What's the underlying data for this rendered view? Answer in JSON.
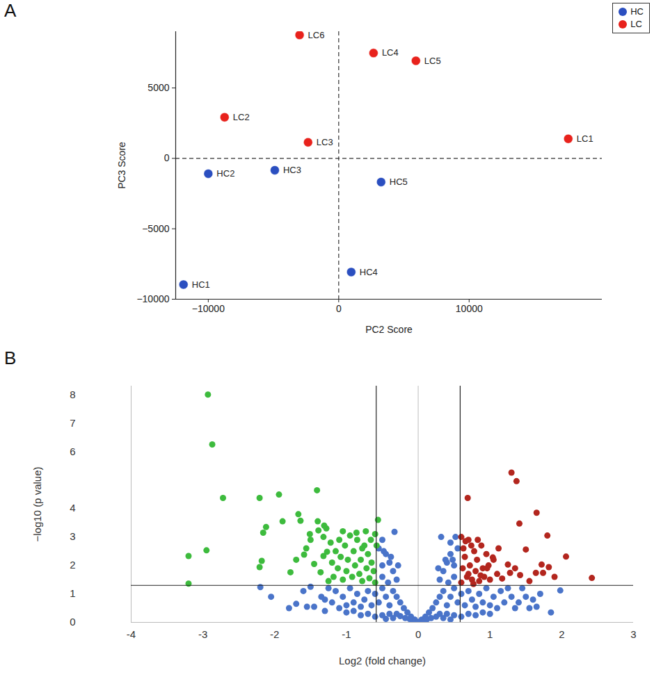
{
  "chart_data": [
    {
      "type": "scatter",
      "panel": "A",
      "xlabel": "PC2 Score",
      "ylabel": "PC3 Score",
      "xlim": [
        -12500,
        20200
      ],
      "ylim": [
        -10000,
        9000
      ],
      "xticks": [
        {
          "value": -10000,
          "label": "−10000"
        },
        0,
        10000
      ],
      "yticks": [
        {
          "value": -10000,
          "label": "−10000"
        },
        {
          "value": -5000,
          "label": "−5000"
        },
        0,
        5000
      ],
      "crosshair": {
        "x": 0,
        "y": 0
      },
      "legend": "top-right",
      "marker": "circle",
      "series": [
        {
          "name": "HC",
          "color": "#2b4fc0",
          "labels": [
            "HC1",
            "HC2",
            "HC3",
            "HC4",
            "HC5"
          ],
          "x": [
            -11900,
            -10000,
            -4900,
            960,
            3250
          ],
          "values": [
            -8960,
            -1090,
            -840,
            -8070,
            -1680
          ]
        },
        {
          "name": "LC",
          "color": "#e8221c",
          "labels": [
            "LC1",
            "LC2",
            "LC3",
            "LC4",
            "LC5",
            "LC6"
          ],
          "x": [
            17600,
            -8750,
            -2350,
            2670,
            5920,
            -3000
          ],
          "values": [
            1390,
            2920,
            1140,
            7480,
            6930,
            8760
          ]
        }
      ]
    },
    {
      "type": "scatter",
      "panel": "B",
      "xlabel": "Log2 (fold change)",
      "ylabel": "−log10 (p value)",
      "xlim": [
        -4,
        3
      ],
      "ylim": [
        0,
        8.3
      ],
      "xticks": [
        -4,
        -3,
        -2,
        -1,
        0,
        1,
        2,
        3
      ],
      "yticks": [
        0,
        1,
        2,
        3,
        4,
        6,
        7,
        8
      ],
      "thresholds": {
        "fold_change": [
          -0.585,
          0.585
        ],
        "p_value": 1.3,
        "center_line": 0
      },
      "marker": "circle",
      "series": [
        {
          "color": "#4a74c9",
          "x": [
            0,
            0.05,
            -0.05,
            0.1,
            -0.1,
            0.15,
            -0.15,
            0.2,
            -0.2,
            0.08,
            -0.08,
            0.12,
            -0.12,
            0.18,
            -0.18,
            0.25,
            -0.25,
            0.3,
            -0.3,
            0.35,
            -0.35,
            0.4,
            -0.4,
            0.45,
            -0.45,
            0.5,
            -0.5,
            0.6,
            -0.6,
            0.7,
            -0.7,
            0.8,
            -0.8,
            0.9,
            -0.9,
            1.0,
            -1.0,
            0.25,
            -0.25,
            0.3,
            -0.3,
            0.35,
            -0.35,
            0.4,
            -0.4,
            0.45,
            -0.45,
            0.5,
            -0.5,
            0.55,
            -0.55,
            0.6,
            -0.6,
            0.65,
            -0.65,
            0.7,
            -0.7,
            0.75,
            -0.75,
            0.8,
            -0.8,
            0.85,
            -0.85,
            0.9,
            -0.9,
            0.95,
            -0.95,
            1.0,
            -1.0,
            1.05,
            -1.05,
            1.1,
            -1.1,
            1.15,
            -1.15,
            1.2,
            -1.2,
            1.3,
            -1.3,
            1.35,
            -1.3,
            1.25,
            -1.25,
            0.3,
            -0.3,
            0.35,
            -0.35,
            0.4,
            -0.4,
            0.45,
            -0.45,
            0.5,
            -0.5,
            0.5,
            -0.5,
            0.55,
            -0.55,
            0.45,
            -0.5,
            0.42,
            -0.42,
            0.38,
            -0.38,
            0.52,
            -0.33,
            0.32,
            0.28,
            -0.28,
            0.48,
            -0.48,
            -2.2,
            -2.05,
            -1.8,
            -1.7,
            -1.55,
            -1.45,
            -1.35,
            -1.6,
            1.98,
            1.85,
            1.65,
            1.55,
            1.4,
            1.5,
            1.7,
            1.45,
            -1.5,
            1.6
          ],
          "values": [
            0.02,
            0.1,
            0.1,
            0.2,
            0.2,
            0.35,
            0.35,
            0.5,
            0.5,
            0.05,
            0.05,
            0.1,
            0.12,
            0.15,
            0.15,
            0.2,
            0.22,
            0.3,
            0.3,
            0.15,
            0.15,
            0.3,
            0.3,
            0.1,
            0.12,
            0.25,
            0.25,
            0.2,
            0.2,
            0.3,
            0.3,
            0.25,
            0.25,
            0.35,
            0.4,
            0.3,
            0.35,
            0.7,
            0.7,
            0.9,
            0.9,
            1.1,
            1.1,
            0.6,
            0.6,
            0.9,
            0.9,
            1.2,
            1.2,
            0.7,
            0.7,
            1.0,
            1.0,
            0.6,
            0.6,
            1.1,
            1.1,
            0.8,
            0.8,
            0.55,
            0.55,
            1.0,
            1.0,
            0.7,
            0.7,
            1.2,
            1.2,
            0.6,
            0.6,
            0.9,
            0.9,
            0.5,
            0.5,
            1.1,
            1.1,
            0.7,
            0.7,
            0.9,
            0.8,
            0.5,
            0.4,
            1.2,
            1.2,
            1.5,
            1.5,
            1.8,
            1.8,
            2.1,
            2.1,
            2.4,
            2.4,
            1.6,
            1.6,
            2.0,
            2.0,
            2.6,
            2.6,
            2.8,
            2.9,
            1.4,
            1.4,
            2.2,
            2.3,
            3.0,
            3.18,
            3.0,
            1.9,
            2.0,
            2.2,
            2.5,
            1.24,
            0.9,
            0.5,
            0.65,
            0.55,
            0.55,
            0.9,
            1.1,
            1.12,
            0.35,
            0.55,
            0.5,
            0.7,
            0.9,
            1.0,
            1.2,
            1.25,
            0.8
          ]
        },
        {
          "color": "#3dbb3d",
          "x": [
            -0.6,
            -0.62,
            -0.65,
            -0.68,
            -0.7,
            -0.72,
            -0.75,
            -0.78,
            -0.8,
            -0.82,
            -0.85,
            -0.88,
            -0.9,
            -0.92,
            -0.95,
            -0.98,
            -1.0,
            -1.02,
            -1.05,
            -1.08,
            -1.1,
            -1.12,
            -1.15,
            -1.18,
            -1.2,
            -1.25,
            -0.56,
            -0.58,
            -0.6,
            -0.66,
            -0.73,
            -0.86,
            -0.78,
            -1.05,
            -1.22,
            -1.28,
            -2.93,
            -2.87,
            -2.72,
            -2.95,
            -3.2,
            -3.2,
            -2.21,
            -1.94,
            -1.41,
            -2.16,
            -1.89,
            -2.12,
            -2.18,
            -2.21,
            -1.67,
            -1.64,
            -1.51,
            -1.5,
            -1.59,
            -1.56,
            -1.78,
            -1.4,
            -1.31,
            -1.39,
            -1.32,
            -1.32,
            -1.36,
            -1.27,
            -1.45,
            -1.7
          ],
          "values": [
            1.4,
            1.8,
            2.1,
            1.55,
            2.4,
            1.9,
            2.7,
            1.45,
            2.2,
            1.7,
            2.9,
            2.0,
            2.5,
            1.6,
            3.05,
            2.2,
            1.8,
            2.7,
            1.5,
            2.3,
            2.9,
            1.9,
            2.5,
            1.6,
            2.1,
            1.45,
            3.6,
            2.7,
            3.1,
            2.9,
            3.2,
            3.15,
            2.6,
            3.2,
            2.8,
            3.3,
            8.0,
            6.25,
            4.37,
            2.53,
            2.33,
            1.36,
            4.37,
            4.49,
            4.64,
            3.15,
            3.55,
            3.35,
            2.16,
            1.94,
            3.8,
            3.57,
            3.1,
            2.9,
            2.38,
            2.6,
            1.76,
            3.55,
            3.4,
            3.23,
            3.0,
            2.33,
            1.76,
            2.48,
            2.05,
            2.2
          ]
        },
        {
          "color": "#b3261e",
          "x": [
            0.6,
            0.62,
            0.65,
            0.68,
            0.7,
            0.72,
            0.75,
            0.78,
            0.8,
            0.82,
            0.85,
            0.88,
            0.9,
            0.92,
            0.95,
            0.98,
            1.0,
            1.05,
            1.1,
            0.63,
            0.66,
            0.74,
            0.83,
            0.6,
            0.7,
            0.77,
            0.87,
            1.12,
            1.3,
            1.37,
            0.69,
            1.41,
            1.65,
            1.8,
            2.06,
            2.42,
            1.5,
            1.72,
            1.64,
            1.82,
            1.74,
            1.42,
            1.28,
            1.25,
            1.04,
            1.17,
            0.96,
            1.55,
            1.9,
            1.35
          ],
          "values": [
            1.4,
            1.9,
            2.3,
            1.6,
            2.9,
            2.0,
            1.5,
            2.5,
            1.8,
            2.2,
            1.45,
            2.7,
            1.9,
            1.6,
            2.4,
            2.0,
            1.5,
            2.2,
            1.7,
            2.6,
            2.85,
            2.7,
            2.9,
            3.0,
            1.7,
            1.35,
            1.65,
            2.6,
            5.26,
            4.96,
            4.37,
            3.47,
            3.85,
            3.05,
            2.31,
            1.56,
            2.56,
            2.03,
            1.74,
            1.94,
            1.74,
            1.66,
            1.74,
            2.03,
            2.28,
            1.54,
            1.9,
            1.45,
            1.6,
            1.9
          ]
        }
      ]
    }
  ]
}
